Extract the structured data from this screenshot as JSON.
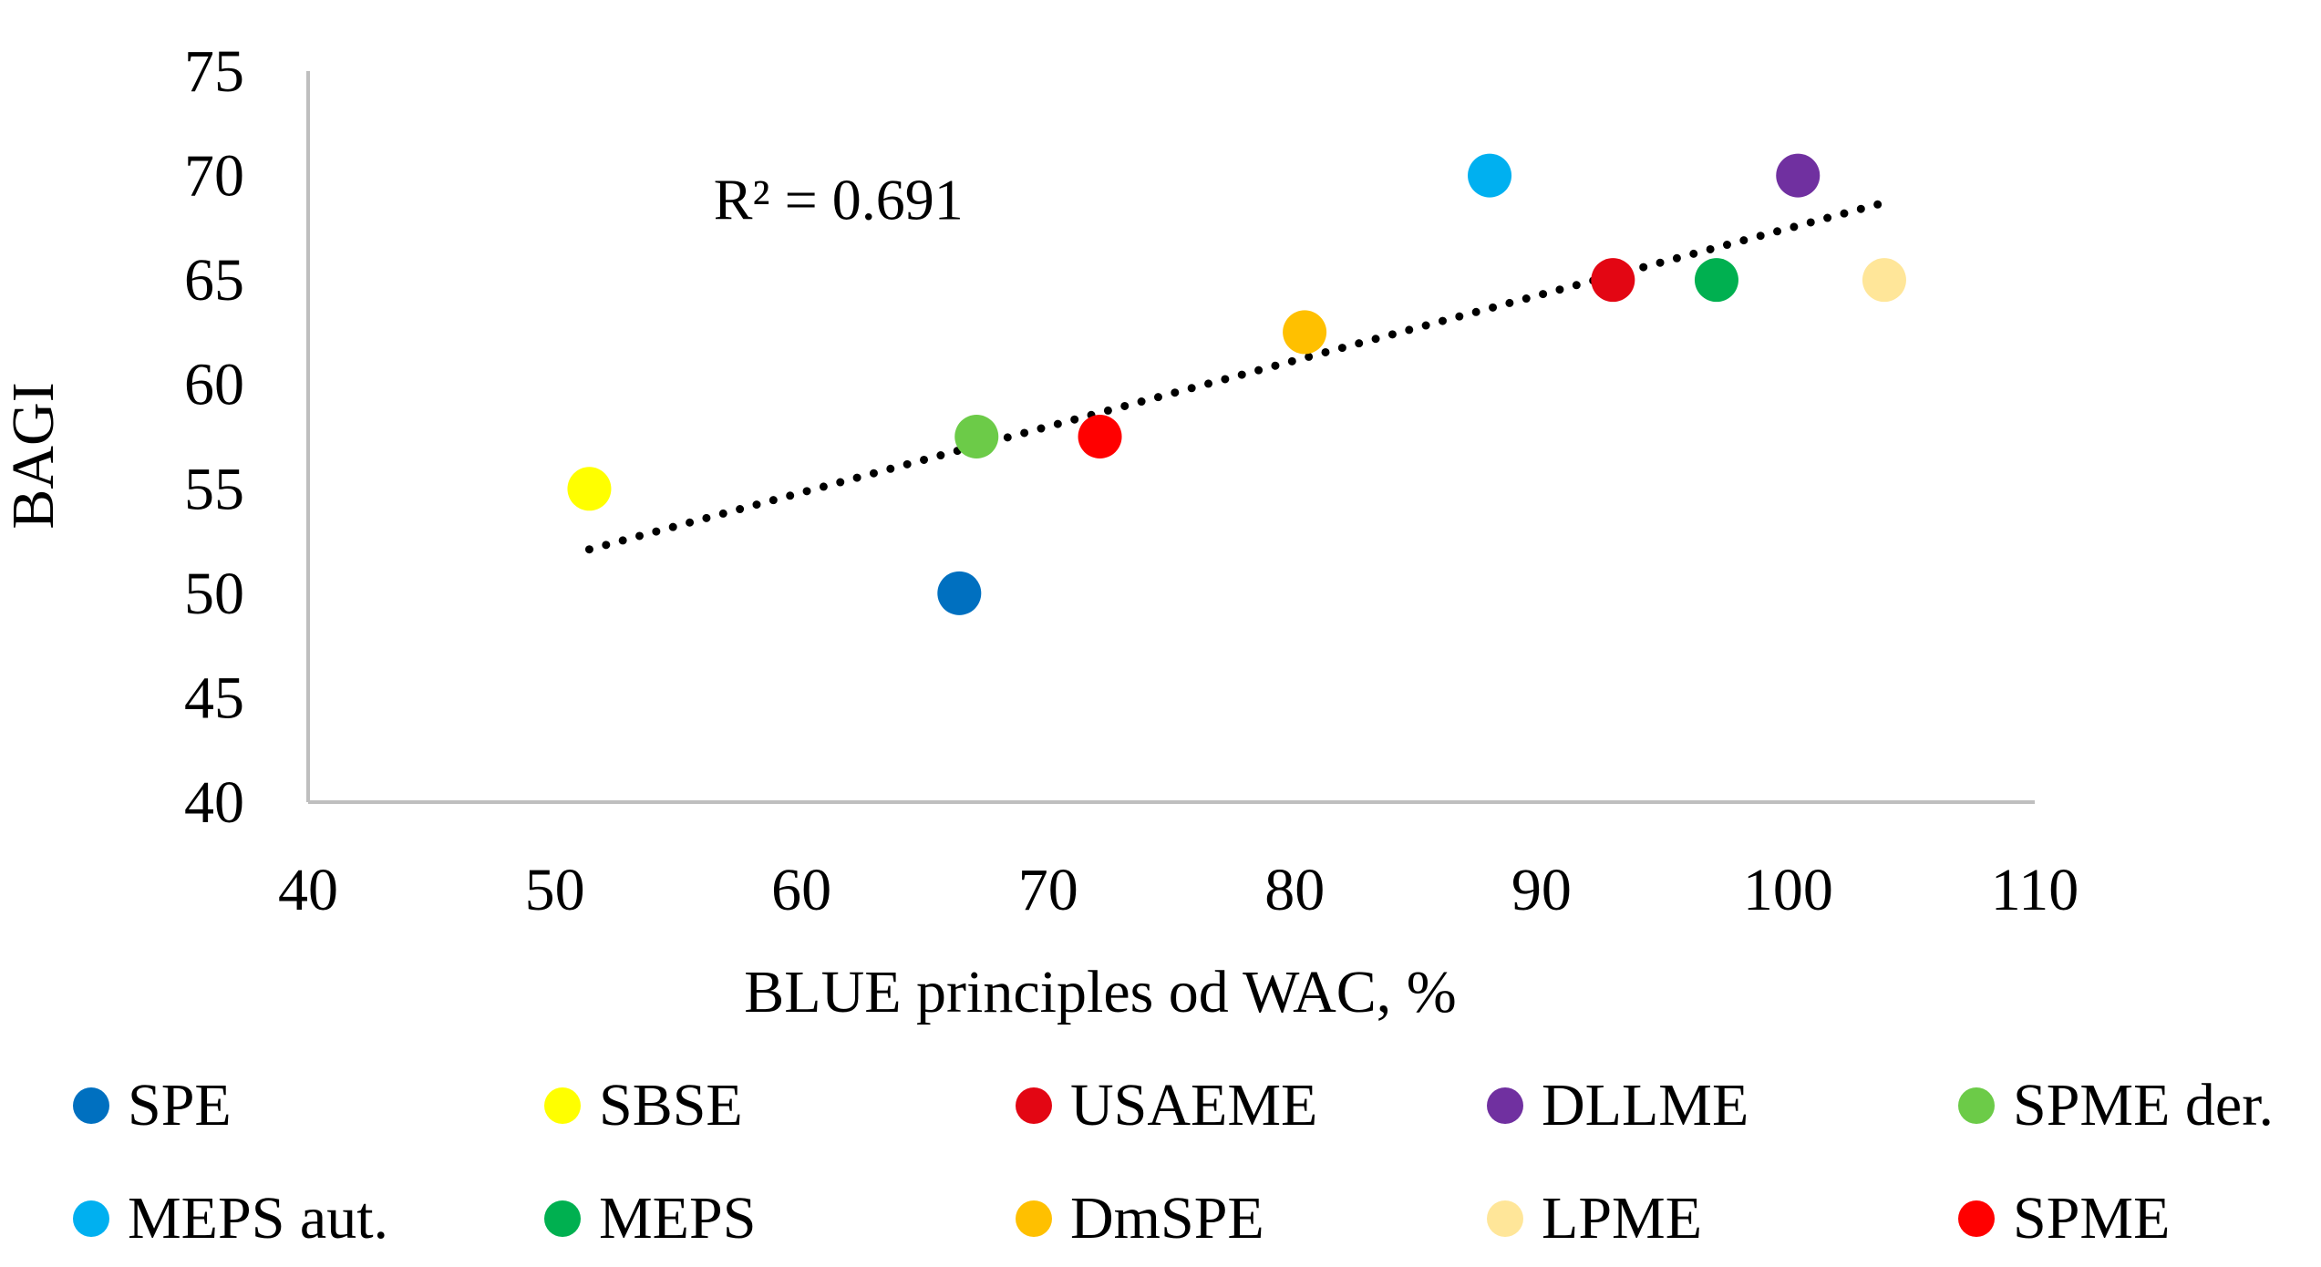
{
  "chart_data": {
    "type": "scatter",
    "title": "",
    "xlabel": "BLUE principles od WAC, %",
    "ylabel": "BAGI",
    "xlim": [
      40,
      110
    ],
    "ylim": [
      40,
      75
    ],
    "xticks": [
      40,
      50,
      60,
      70,
      80,
      90,
      100,
      110
    ],
    "yticks": [
      40,
      45,
      50,
      55,
      60,
      65,
      70,
      75
    ],
    "grid": false,
    "legend_position": "bottom",
    "series": [
      {
        "name": "SPE",
        "color": "#0070C0",
        "points": [
          [
            66.4,
            50
          ]
        ]
      },
      {
        "name": "SBSE",
        "color": "#FFFF00",
        "points": [
          [
            51.4,
            55
          ]
        ]
      },
      {
        "name": "USAEME",
        "color": "#E30613",
        "points": [
          [
            92.9,
            65
          ]
        ]
      },
      {
        "name": "DLLME",
        "color": "#7030A0",
        "points": [
          [
            100.4,
            70
          ]
        ]
      },
      {
        "name": "SPME der.",
        "color": "#6CCB48",
        "points": [
          [
            67.1,
            57.5
          ]
        ]
      },
      {
        "name": "MEPS aut.",
        "color": "#00B0F0",
        "points": [
          [
            87.9,
            70
          ]
        ]
      },
      {
        "name": "MEPS",
        "color": "#00B050",
        "points": [
          [
            97.1,
            65
          ]
        ]
      },
      {
        "name": "DmSPE",
        "color": "#FFC000",
        "points": [
          [
            80.4,
            62.5
          ]
        ]
      },
      {
        "name": "LPME",
        "color": "#FFE699",
        "points": [
          [
            103.9,
            65
          ]
        ]
      },
      {
        "name": "SPME",
        "color": "#FF0000",
        "points": [
          [
            72.1,
            57.5
          ]
        ]
      }
    ],
    "trendline": {
      "type": "linear",
      "x_start": 51.4,
      "y_start": 52.1,
      "x_end": 103.9,
      "y_end": 68.7,
      "color": "#000000",
      "style": "dotted"
    },
    "annotations": [
      {
        "text": "R² = 0.691",
        "x": 61.5,
        "y": 67.9
      }
    ]
  }
}
